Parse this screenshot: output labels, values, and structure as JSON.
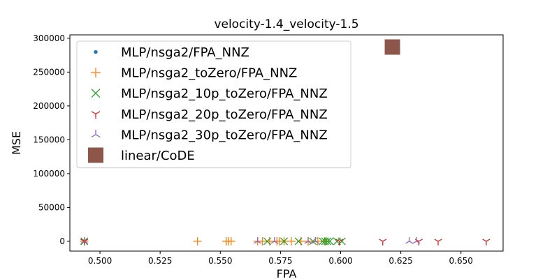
{
  "chart_data": {
    "type": "scatter",
    "title": "velocity-1.4_velocity-1.5",
    "xlabel": "FPA",
    "ylabel": "MSE",
    "xlim": [
      0.4875,
      0.6675
    ],
    "ylim": [
      -14500,
      305000
    ],
    "xticks": [
      "0.500",
      "0.525",
      "0.550",
      "0.575",
      "0.600",
      "0.625",
      "0.650"
    ],
    "xtick_values": [
      0.5,
      0.525,
      0.55,
      0.575,
      0.6,
      0.625,
      0.65
    ],
    "yticks": [
      "0",
      "50000",
      "100000",
      "150000",
      "200000",
      "250000",
      "300000"
    ],
    "ytick_values": [
      0,
      50000,
      100000,
      150000,
      200000,
      250000,
      300000
    ],
    "grid": false,
    "legend_position": "upper-left",
    "series": [
      {
        "name": "MLP/nsga2/FPA_NNZ",
        "marker": "point",
        "color": "#1f77b4",
        "x": [
          0.4935,
          0.4935
        ],
        "y": [
          0,
          500
        ]
      },
      {
        "name": "MLP/nsga2_toZero/FPA_NNZ",
        "marker": "plus",
        "color": "#ff7f0e",
        "x": [
          0.4935,
          0.5405,
          0.5525,
          0.5535,
          0.5545,
          0.5655,
          0.5675,
          0.5705,
          0.5735,
          0.5745,
          0.5765,
          0.5795,
          0.5835,
          0.5865,
          0.5905,
          0.5935
        ],
        "y": [
          0,
          0,
          0,
          0,
          0,
          0,
          0,
          0,
          0,
          0,
          0,
          0,
          0,
          0,
          0,
          0
        ]
      },
      {
        "name": "MLP/nsga2_10p_toZero/FPA_NNZ",
        "marker": "x",
        "color": "#2ca02c",
        "x": [
          0.4935,
          0.5695,
          0.5765,
          0.5825,
          0.5885,
          0.5925,
          0.5935,
          0.5945,
          0.5955,
          0.5985,
          0.6005
        ],
        "y": [
          0,
          0,
          0,
          0,
          0,
          0,
          0,
          0,
          0,
          0,
          0
        ]
      },
      {
        "name": "MLP/nsga2_20p_toZero/FPA_NNZ",
        "marker": "tri_down",
        "color": "#d62728",
        "x": [
          0.4935,
          0.5995,
          0.6175,
          0.6325,
          0.6405,
          0.6605
        ],
        "y": [
          0,
          0,
          0,
          0,
          0,
          0
        ]
      },
      {
        "name": "MLP/nsga2_30p_toZero/FPA_NNZ",
        "marker": "tri_up",
        "color": "#9467bd",
        "x": [
          0.4935,
          0.5655,
          0.5725,
          0.5865,
          0.5895,
          0.6285,
          0.6315
        ],
        "y": [
          0,
          0,
          0,
          0,
          0,
          0,
          0
        ]
      },
      {
        "name": "linear/CoDE",
        "marker": "square",
        "color": "#8c564b",
        "x": [
          0.6215
        ],
        "y": [
          287000
        ]
      }
    ]
  }
}
